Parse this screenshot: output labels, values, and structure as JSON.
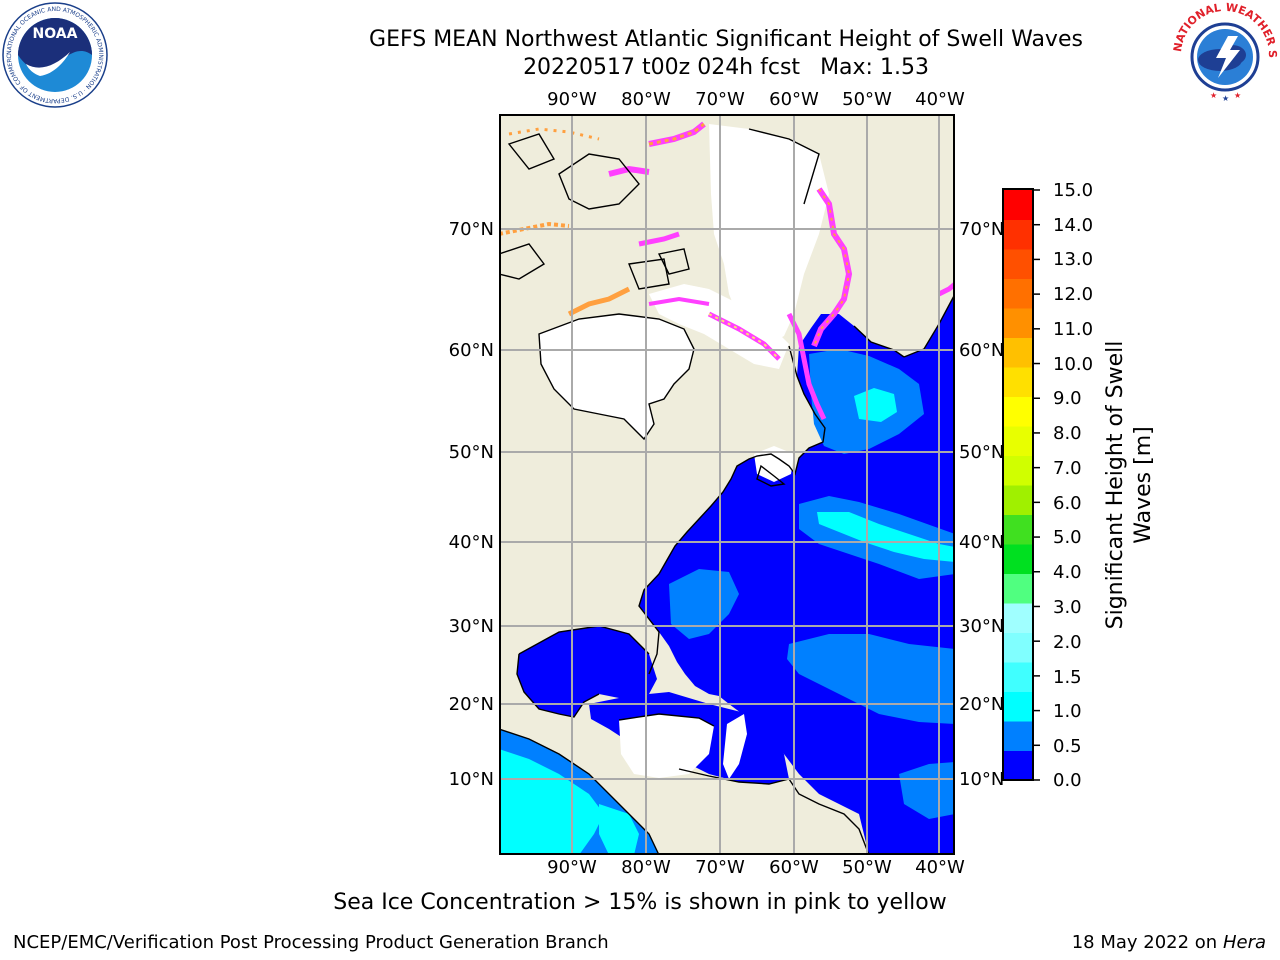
{
  "title": "GEFS MEAN Northwest Atlantic Significant Height of Swell Waves",
  "subtitle_run": "20220517 t00z 024h fcst",
  "subtitle_max": "Max: 1.53",
  "lon_labels": [
    "90°W",
    "80°W",
    "70°W",
    "60°W",
    "50°W",
    "40°W"
  ],
  "lat_labels": [
    "70°N",
    "60°N",
    "50°N",
    "40°N",
    "30°N",
    "20°N",
    "10°N"
  ],
  "colorbar": {
    "title_line1": "Significant Height of Swell",
    "title_line2": "Waves [m]",
    "ticks": [
      "15.0",
      "14.0",
      "13.0",
      "12.0",
      "11.0",
      "10.0",
      "9.0",
      "8.0",
      "7.0",
      "6.0",
      "5.0",
      "4.0",
      "3.0",
      "2.0",
      "1.5",
      "1.0",
      "0.5",
      "0.0"
    ],
    "colors": [
      "#0000ff",
      "#0080ff",
      "#00ffff",
      "#40ffff",
      "#80ffff",
      "#a0ffff",
      "#50ff80",
      "#00e020",
      "#40e020",
      "#a0f000",
      "#d0ff00",
      "#e8ff00",
      "#ffff00",
      "#ffe000",
      "#ffc000",
      "#ff9000",
      "#ff7000",
      "#ff5000",
      "#ff3000",
      "#ff0000"
    ]
  },
  "colors": {
    "land": "#efeddc",
    "ocean_low": "#0000ff",
    "ocean_mid": "#0080ff",
    "ocean_high": "#00ffff",
    "ice_pink": "#ff40ff",
    "ice_orange": "#ffa040",
    "ice_yellow": "#ffe070",
    "grid": "#aaaaaa"
  },
  "logos": {
    "noaa_text": "NOAA",
    "noaa_ring": "NATIONAL OCEANIC AND ATMOSPHERIC ADMINISTRATION · U.S. DEPARTMENT OF COMMERCE ·",
    "nws_ring": "NATIONAL WEATHER SERVICE"
  },
  "caption": "Sea Ice Concentration > 15% is shown in pink to yellow",
  "footer_left": "NCEP/EMC/Verification Post Processing Product Generation Branch",
  "footer_date": "18 May 2022 on",
  "footer_machine": "Hera"
}
